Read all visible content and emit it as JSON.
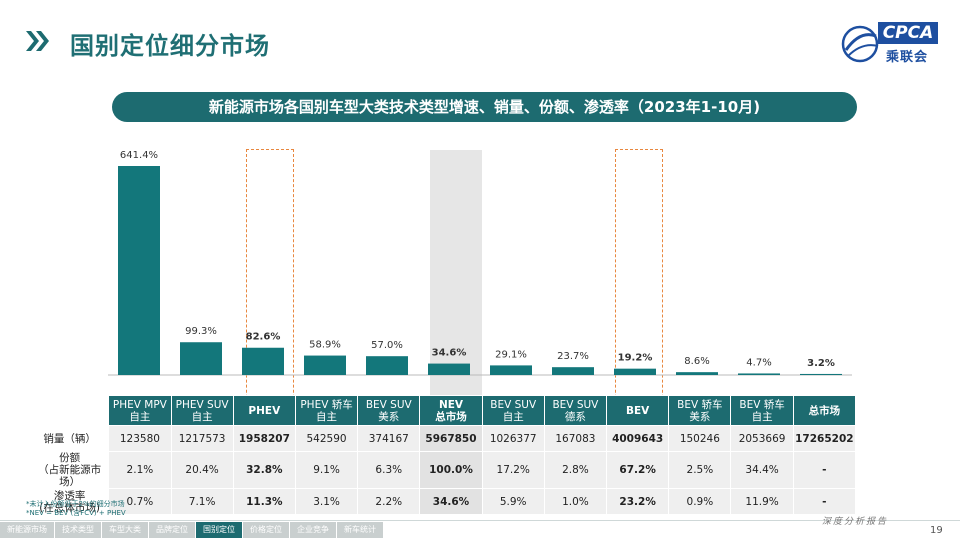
{
  "page": {
    "title": "国别定位细分市场",
    "subtitle": "新能源市场各国别车型大类技术类型增速、销量、份额、渗透率（2023年1-10月)",
    "page_number": "19",
    "tagline": "深度分析报告",
    "logo": {
      "text": "CPCA",
      "cn": "乘联会"
    },
    "colors": {
      "teal": "#1d6b70",
      "bar": "#13777b",
      "highlight": "#e8873f",
      "shade": "#e6e6e6"
    }
  },
  "chart_data": {
    "type": "bar",
    "categories": [
      "PHEV MPV 自主",
      "PHEV SUV 自主",
      "PHEV",
      "PHEV 轿车 自主",
      "BEV SUV 美系",
      "NEV 总市场",
      "BEV SUV 自主",
      "BEV SUV 德系",
      "BEV",
      "BEV 轿车 美系",
      "BEV 轿车 自主",
      "总市场"
    ],
    "values": [
      641.4,
      99.3,
      82.6,
      58.9,
      57.0,
      34.6,
      29.1,
      23.7,
      19.2,
      8.6,
      4.7,
      3.2
    ],
    "labels": [
      "641.4%",
      "99.3%",
      "82.6%",
      "58.9%",
      "57.0%",
      "34.6%",
      "29.1%",
      "23.7%",
      "19.2%",
      "8.6%",
      "4.7%",
      "3.2%"
    ],
    "bold_labels": [
      false,
      false,
      true,
      false,
      false,
      true,
      false,
      false,
      true,
      false,
      false,
      true
    ],
    "highlighted": [
      2,
      8
    ],
    "shaded": [
      5
    ],
    "scale": "compressed",
    "title": "",
    "xlabel": "",
    "ylabel": ""
  },
  "table": {
    "headers": [
      [
        "PHEV MPV",
        "自主"
      ],
      [
        "PHEV SUV",
        "自主"
      ],
      [
        "PHEV",
        ""
      ],
      [
        "PHEV 轿车",
        "自主"
      ],
      [
        "BEV SUV",
        "美系"
      ],
      [
        "NEV",
        "总市场"
      ],
      [
        "BEV SUV",
        "自主"
      ],
      [
        "BEV SUV",
        "德系"
      ],
      [
        "BEV",
        ""
      ],
      [
        "BEV 轿车",
        "美系"
      ],
      [
        "BEV 轿车",
        "自主"
      ],
      [
        "总市场",
        ""
      ]
    ],
    "rows": [
      {
        "label1": "销量（辆）",
        "label2": "",
        "cells": [
          "123580",
          "1217573",
          "1958207",
          "542590",
          "374167",
          "5967850",
          "1026377",
          "167083",
          "4009643",
          "150246",
          "2053669",
          "17265202"
        ]
      },
      {
        "label1": "份额",
        "label2": "（占新能源市场）",
        "cells": [
          "2.1%",
          "20.4%",
          "32.8%",
          "9.1%",
          "6.3%",
          "100.0%",
          "17.2%",
          "2.8%",
          "67.2%",
          "2.5%",
          "34.4%",
          "-"
        ]
      },
      {
        "label1": "渗透率",
        "label2": "(在总体市场)",
        "cells": [
          "0.7%",
          "7.1%",
          "11.3%",
          "3.1%",
          "2.2%",
          "34.6%",
          "5.9%",
          "1.0%",
          "23.2%",
          "0.9%",
          "11.9%",
          "-"
        ]
      }
    ],
    "bold_columns": [
      2,
      5,
      8,
      11
    ]
  },
  "notes": {
    "line1": "*未计入份额低于2%的细分市场",
    "line2": "*NEV = BEV (含FCV) + PHEV"
  },
  "nav": [
    "新能源市场",
    "技术类型",
    "车型大类",
    "品牌定位",
    "国别定位",
    "价格定位",
    "企业竞争",
    "新车统计"
  ],
  "nav_active": 4
}
